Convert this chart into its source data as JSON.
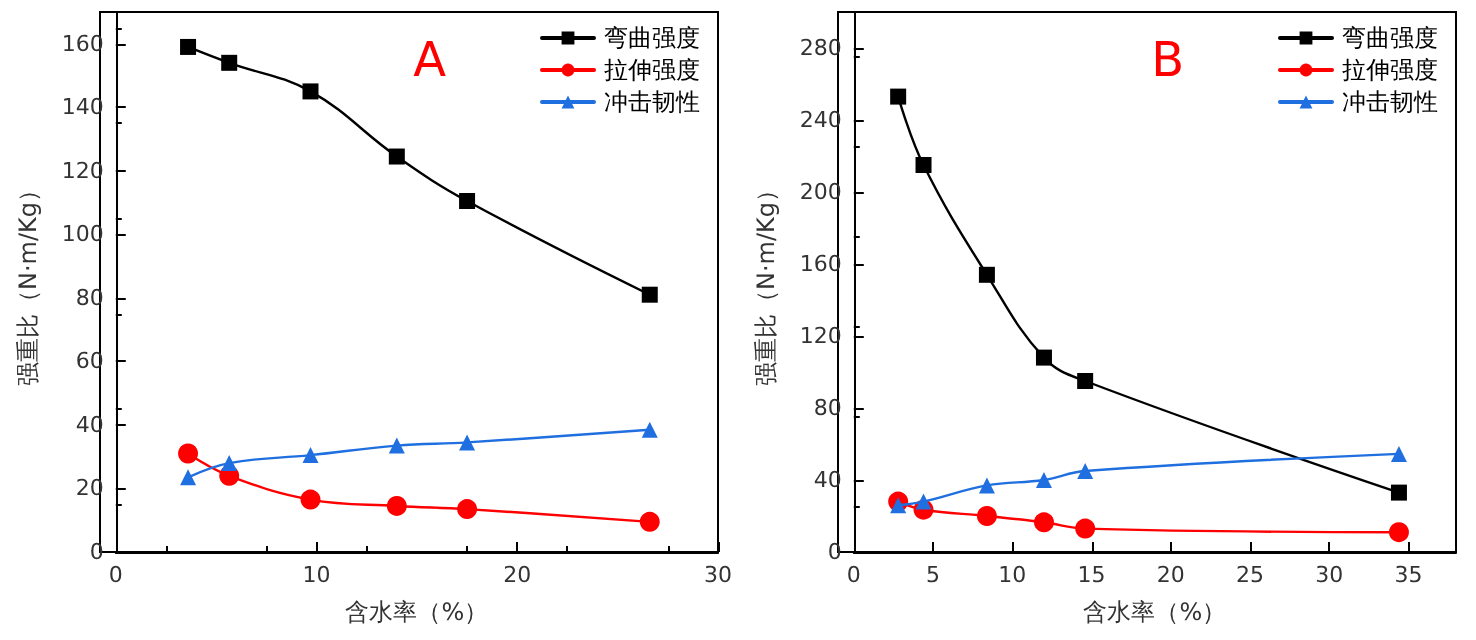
{
  "chart_data": [
    {
      "type": "line",
      "xlabel": "含水率（%）",
      "ylabel": "强重比（N·m/Kg）",
      "annotations": [
        "A"
      ],
      "xlim": [
        0,
        30
      ],
      "xticks": [
        0,
        10,
        20,
        30
      ],
      "ylim": [
        0,
        170
      ],
      "yticks": [
        0,
        20,
        40,
        60,
        80,
        100,
        120,
        140,
        160
      ],
      "grid": false,
      "legend": "top right",
      "x": [
        3.6,
        5.65,
        9.7,
        14.0,
        17.5,
        26.6
      ],
      "series": [
        {
          "name": "弯曲强度",
          "color": "#000000",
          "marker": "square",
          "values": [
            159,
            154,
            145,
            124.5,
            110.5,
            81
          ]
        },
        {
          "name": "拉伸强度",
          "color": "#ff0000",
          "marker": "circle",
          "values": [
            31,
            24,
            16.5,
            14.5,
            13.5,
            9.5
          ]
        },
        {
          "name": "冲击韧性",
          "color": "#1f6fe0",
          "marker": "triangle",
          "values": [
            23.5,
            28,
            30.5,
            33.5,
            34.5,
            38.5
          ]
        }
      ]
    },
    {
      "type": "line",
      "xlabel": "含水率（%）",
      "ylabel": "强重比（N·m/Kg）",
      "annotations": [
        "B"
      ],
      "xlim": [
        0,
        38
      ],
      "xticks": [
        0,
        5,
        10,
        15,
        20,
        25,
        30,
        35
      ],
      "ylim": [
        0,
        300
      ],
      "yticks": [
        0,
        40,
        80,
        120,
        160,
        200,
        240,
        280
      ],
      "grid": false,
      "legend": "top right",
      "x": [
        2.8,
        4.4,
        8.4,
        12.0,
        14.6,
        34.4
      ],
      "series": [
        {
          "name": "弯曲强度",
          "color": "#000000",
          "marker": "square",
          "values": [
            253,
            215,
            154,
            108,
            95,
            33
          ]
        },
        {
          "name": "拉伸强度",
          "color": "#ff0000",
          "marker": "circle",
          "values": [
            28,
            23.5,
            20,
            16.5,
            13,
            11
          ]
        },
        {
          "name": "冲击韧性",
          "color": "#1f6fe0",
          "marker": "triangle",
          "values": [
            26,
            28,
            37,
            40,
            45,
            54.5
          ]
        }
      ]
    }
  ]
}
